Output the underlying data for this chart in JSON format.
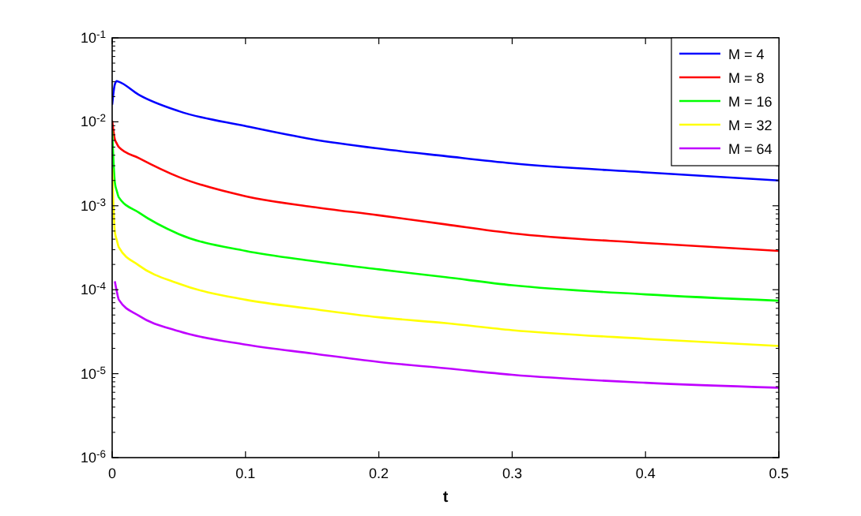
{
  "chart_data": {
    "type": "line",
    "xlabel": "t",
    "log": "y",
    "grid": false,
    "legend": "top right",
    "line_style": "solid",
    "marker": "none",
    "xlim": [
      0,
      0.5
    ],
    "xticks": [
      0,
      0.1,
      0.2,
      0.3,
      0.4,
      0.5
    ],
    "ylim": [
      1e-06,
      0.1
    ],
    "yticks": [
      {
        "value": 1e-06,
        "label": "10$^{-6}$"
      },
      {
        "value": 1e-05,
        "label": "10$^{-5}$"
      },
      {
        "value": 0.0001,
        "label": "10$^{-4}$"
      },
      {
        "value": 0.001,
        "label": "10$^{-3}$"
      },
      {
        "value": 0.01,
        "label": "10$^{-2}$"
      },
      {
        "value": 0.1,
        "label": "10$^{-1}$"
      }
    ],
    "x": [
      0,
      0.002,
      0.0035,
      0.005,
      0.02,
      0.05,
      0.1,
      0.15,
      0.2,
      0.25,
      0.3,
      0.4,
      0.5
    ],
    "series": [
      {
        "name": "M = 4",
        "color": "#0000ff",
        "values": [
          0.016,
          0.028,
          0.0305,
          0.03,
          0.021,
          0.0134,
          0.0089,
          0.0062,
          0.0048,
          0.0039,
          0.0032,
          0.0025,
          0.002
        ]
      },
      {
        "name": "M = 8",
        "color": "#ff0000",
        "values": [
          0.0103,
          0.0062,
          0.0055,
          0.005,
          0.0037,
          0.0022,
          0.0013,
          0.00097,
          0.00077,
          0.0006,
          0.00047,
          0.00036,
          0.00029
        ]
      },
      {
        "name": "M = 16",
        "color": "#00ff00",
        "values": [
          0.0078,
          0.0019,
          0.0015,
          0.00126,
          0.00083,
          0.00046,
          0.00029,
          0.00022,
          0.000175,
          0.000141,
          0.000113,
          8.8e-05,
          7.4e-05
        ]
      },
      {
        "name": "M = 32",
        "color": "#ffff00",
        "values": [
          0.0028,
          0.00049,
          0.00039,
          0.00032,
          0.000195,
          0.000118,
          7.6e-05,
          5.9e-05,
          4.7e-05,
          4e-05,
          3.3e-05,
          2.6e-05,
          2.14e-05
        ]
      },
      {
        "name": "M = 64",
        "color": "#bf00ff",
        "values": [
          null,
          0.000126,
          9.5e-05,
          7.6e-05,
          4.9e-05,
          3.2e-05,
          2.22e-05,
          1.74e-05,
          1.38e-05,
          1.16e-05,
          9.7e-06,
          7.8e-06,
          6.8e-06
        ]
      }
    ]
  }
}
